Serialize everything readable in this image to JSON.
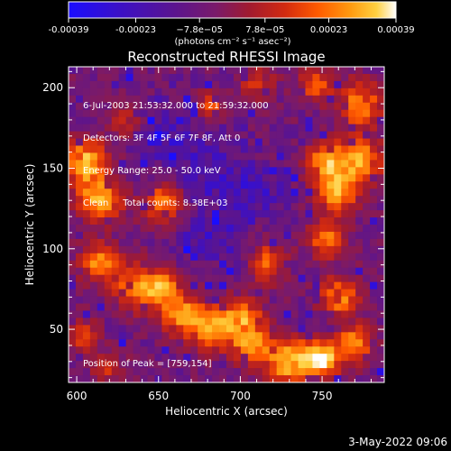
{
  "colorbar": {
    "ticks": [
      "-0.00039",
      "-0.00023",
      "−7.8e−05",
      "7.8e−05",
      "0.00023",
      "0.00039"
    ],
    "tick_values": [
      -0.00039,
      -0.00023,
      -7.8e-05,
      7.8e-05,
      0.00023,
      0.00039
    ],
    "range": [
      -0.00039,
      0.00039
    ],
    "units": "(photons cm⁻² s⁻¹ asec⁻²)",
    "colors": [
      "#1a0dff",
      "#3a10c8",
      "#5a1490",
      "#7a1a6a",
      "#a01a30",
      "#d22a10",
      "#ff5a00",
      "#ff9a10",
      "#ffd040",
      "#ffffff"
    ]
  },
  "plot": {
    "title": "Reconstructed RHESSI Image",
    "xlabel": "Heliocentric X (arcsec)",
    "ylabel": "Heliocentric Y (arcsec)",
    "xlim": [
      595,
      788
    ],
    "ylim": [
      17,
      213
    ],
    "xticks": [
      {
        "v": 600,
        "t": "600"
      },
      {
        "v": 650,
        "t": "650"
      },
      {
        "v": 700,
        "t": "700"
      },
      {
        "v": 750,
        "t": "750"
      }
    ],
    "yticks": [
      {
        "v": 50,
        "t": "50"
      },
      {
        "v": 100,
        "t": "100"
      },
      {
        "v": 150,
        "t": "150"
      },
      {
        "v": 200,
        "t": "200"
      }
    ]
  },
  "annotation": {
    "time_range": "6-Jul-2003 21:53:32.000 to 21:59:32.000",
    "detectors": "Detectors: 3F 4F 5F 6F 7F 8F, Att 0",
    "energy": "Energy Range: 25.0 - 50.0 keV",
    "method": "Clean",
    "counts": "Total counts: 8.38E+03",
    "peak": "Position of Peak = [759,154]"
  },
  "footer": {
    "date": "3-May-2022 09:06"
  }
}
